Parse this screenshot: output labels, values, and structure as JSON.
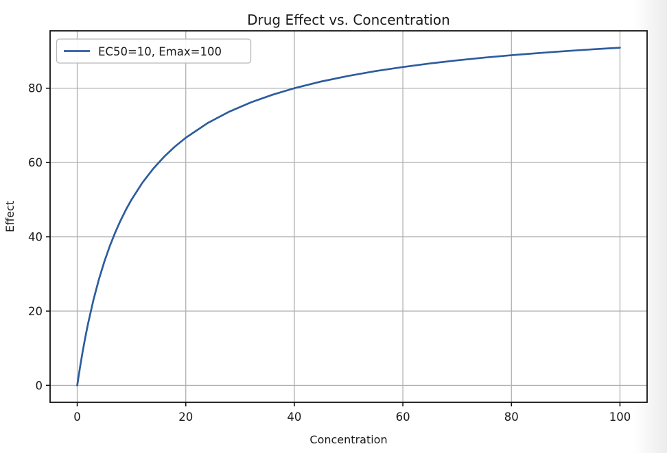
{
  "chart_data": {
    "type": "line",
    "title": "Drug Effect vs. Concentration",
    "xlabel": "Concentration",
    "ylabel": "Effect",
    "xlim": [
      -5,
      105
    ],
    "ylim": [
      -4.55,
      95.45
    ],
    "xticks": [
      0,
      20,
      40,
      60,
      80,
      100
    ],
    "yticks": [
      0,
      20,
      40,
      60,
      80
    ],
    "grid": true,
    "legend_position": "upper left",
    "colors": {
      "line": "#2d5c9e",
      "grid": "#b0b0b0",
      "frame": "#111111",
      "text": "#1a1a1a",
      "legend_border": "#b8b8b8",
      "legend_bg": "#ffffff",
      "background": "#ffffff"
    },
    "series": [
      {
        "name": "EC50=10, Emax=100",
        "ec50": 10,
        "emax": 100,
        "x": [
          0,
          0.5,
          1,
          1.5,
          2,
          3,
          4,
          5,
          6,
          7,
          8,
          9,
          10,
          12,
          14,
          16,
          18,
          20,
          24,
          28,
          32,
          36,
          40,
          45,
          50,
          55,
          60,
          65,
          70,
          75,
          80,
          85,
          90,
          95,
          100
        ],
        "y": [
          0,
          4.76,
          9.09,
          13.04,
          16.67,
          23.08,
          28.57,
          33.33,
          37.5,
          41.18,
          44.44,
          47.37,
          50,
          54.55,
          58.33,
          61.54,
          64.29,
          66.67,
          70.59,
          73.68,
          76.19,
          78.26,
          80,
          81.82,
          83.33,
          84.62,
          85.71,
          86.67,
          87.5,
          88.24,
          88.89,
          89.47,
          90,
          90.48,
          90.91
        ]
      }
    ]
  }
}
